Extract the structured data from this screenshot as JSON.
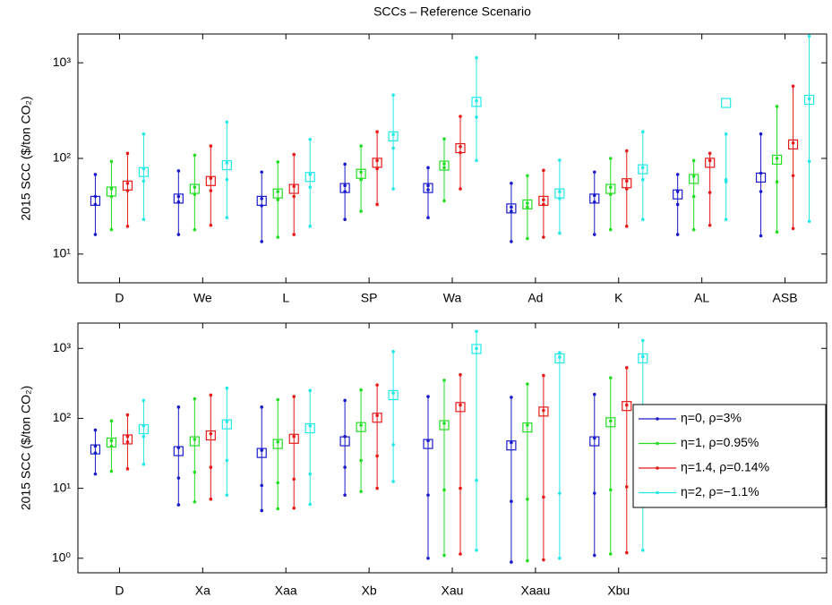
{
  "chart_data": [
    {
      "type": "interval",
      "title": "SCCs – Reference Scenario",
      "ylabel": "2015 SCC ($/ton CO₂)",
      "log_y": true,
      "ylim": [
        5,
        2000
      ],
      "yticks": [
        {
          "value": 10,
          "label": "10¹"
        },
        {
          "value": 100,
          "label": "10²"
        },
        {
          "value": 1000,
          "label": "10³"
        }
      ],
      "categories": [
        "D",
        "We",
        "L",
        "SP",
        "Wa",
        "Ad",
        "K",
        "AL",
        "ASB"
      ],
      "series": [
        {
          "color": "#1a1acc",
          "values": [
            36,
            38,
            36,
            49,
            49,
            30,
            38,
            42,
            63
          ],
          "low": [
            16,
            16,
            13.5,
            23,
            24,
            13.5,
            16,
            16,
            15.5
          ],
          "inner_low": [
            33,
            35,
            32,
            45,
            47,
            28,
            35,
            33,
            45
          ],
          "inner_high": [
            40,
            40,
            38,
            52,
            52,
            31,
            41,
            45,
            70
          ],
          "high": [
            68,
            74,
            72,
            87,
            80,
            55,
            72,
            68,
            180
          ]
        },
        {
          "color": "#22dd22",
          "values": [
            45,
            48,
            43,
            69,
            84,
            33,
            48,
            61,
            97
          ],
          "low": [
            18,
            18,
            15,
            28,
            36,
            14.5,
            18,
            18,
            17
          ],
          "inner_low": [
            40,
            42,
            37,
            60,
            80,
            31,
            42,
            40,
            57
          ],
          "inner_high": [
            48,
            50,
            45,
            72,
            88,
            34,
            50,
            65,
            100
          ],
          "high": [
            93,
            108,
            92,
            135,
            160,
            66,
            100,
            95,
            350
          ]
        },
        {
          "color": "#e81818",
          "values": [
            52,
            58,
            48,
            90,
            128,
            36,
            55,
            90,
            140
          ],
          "low": [
            19.5,
            20,
            16,
            33,
            48,
            15,
            19.5,
            20,
            18.5
          ],
          "inner_low": [
            46,
            46,
            40,
            78,
            115,
            33,
            48,
            44,
            66
          ],
          "inner_high": [
            55,
            62,
            51,
            95,
            133,
            37,
            58,
            95,
            145
          ],
          "high": [
            113,
            135,
            110,
            190,
            275,
            75,
            120,
            113,
            570
          ]
        },
        {
          "color": "#22e8e8",
          "values": [
            72,
            85,
            64,
            170,
            390,
            43,
            77,
            380,
            410
          ],
          "low": [
            23,
            24,
            19.5,
            48,
            95,
            16.5,
            23,
            23,
            22
          ],
          "inner_low": [
            58,
            60,
            50,
            128,
            270,
            38,
            60,
            57,
            93
          ],
          "inner_high": [
            78,
            90,
            68,
            178,
            400,
            45,
            80,
            60,
            420
          ],
          "high": [
            180,
            240,
            158,
            460,
            1130,
            96,
            190,
            180,
            1900
          ]
        }
      ]
    },
    {
      "type": "interval",
      "ylabel": "2015 SCC ($/ton CO₂)",
      "log_y": true,
      "ylim": [
        0.62,
        2300
      ],
      "legend": "right",
      "yticks": [
        {
          "value": 1,
          "label": "10⁰"
        },
        {
          "value": 10,
          "label": "10¹"
        },
        {
          "value": 100,
          "label": "10²"
        },
        {
          "value": 1000,
          "label": "10³"
        }
      ],
      "categories": [
        "D",
        "Xa",
        "Xaa",
        "Xb",
        "Xau",
        "Xaau",
        "Xbu",
        null,
        null
      ],
      "series": [
        {
          "name": "η=0, ρ=3%",
          "color": "#1a1acc",
          "values": [
            36,
            34,
            32,
            47,
            43,
            41,
            47,
            null,
            null
          ],
          "low": [
            16,
            5.8,
            4.8,
            8,
            1.0,
            0.88,
            1.1,
            null,
            null
          ],
          "inner_low": [
            32,
            14,
            11,
            20,
            8,
            6.5,
            8.5,
            null,
            null
          ],
          "inner_high": [
            40,
            38,
            35,
            55,
            48,
            45,
            52,
            null,
            null
          ],
          "high": [
            68,
            145,
            145,
            180,
            205,
            200,
            220,
            null,
            null
          ]
        },
        {
          "name": "η=1, ρ=0.95%",
          "color": "#22dd22",
          "values": [
            45,
            47,
            43,
            75,
            80,
            74,
            88,
            null,
            null
          ],
          "low": [
            17.5,
            6.4,
            5.1,
            9,
            1.1,
            0.92,
            1.15,
            null,
            null
          ],
          "inner_low": [
            40,
            17,
            12,
            25,
            9.5,
            7,
            9.5,
            null,
            null
          ],
          "inner_high": [
            48,
            50,
            46,
            80,
            85,
            80,
            92,
            null,
            null
          ],
          "high": [
            92,
            190,
            185,
            255,
            350,
            310,
            380,
            null,
            null
          ]
        },
        {
          "name": "η=1.4, ρ=0.14%",
          "color": "#e81818",
          "values": [
            50,
            57,
            51,
            102,
            145,
            125,
            150,
            null,
            null
          ],
          "low": [
            19,
            7,
            5.2,
            10,
            1.15,
            0.95,
            1.2,
            null,
            null
          ],
          "inner_low": [
            46,
            20,
            13.5,
            29,
            10,
            7.5,
            10.5,
            null,
            null
          ],
          "inner_high": [
            55,
            60,
            55,
            110,
            155,
            130,
            155,
            null,
            null
          ],
          "high": [
            112,
            215,
            205,
            300,
            420,
            410,
            530,
            null,
            null
          ]
        },
        {
          "name": "η=2, ρ=−1.1%",
          "color": "#22e8e8",
          "values": [
            70,
            82,
            72,
            215,
            980,
            720,
            720,
            null,
            null
          ],
          "low": [
            22,
            8,
            5.9,
            12.5,
            1.3,
            1.0,
            1.3,
            null,
            null
          ],
          "inner_low": [
            55,
            25,
            16,
            42,
            13,
            8.5,
            12,
            null,
            null
          ],
          "inner_high": [
            78,
            90,
            78,
            230,
            1000,
            750,
            760,
            null,
            null
          ],
          "high": [
            180,
            270,
            250,
            900,
            1750,
            870,
            1300,
            null,
            null
          ]
        }
      ]
    }
  ]
}
